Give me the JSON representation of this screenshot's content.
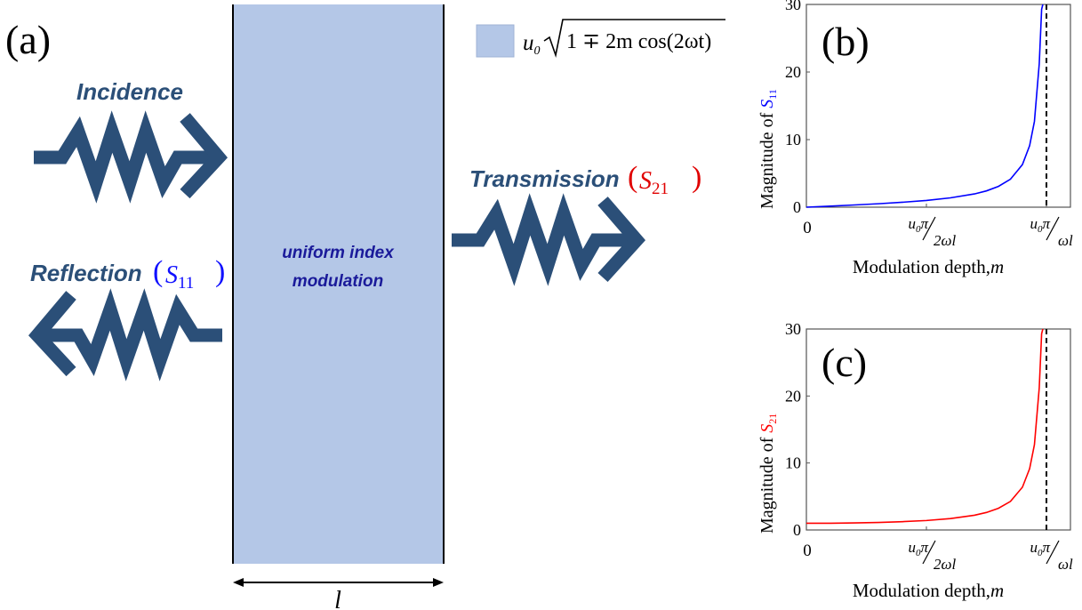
{
  "panels": {
    "a": {
      "label": "(a)",
      "incidence": "Incidence",
      "transmission": "Transmission",
      "transmission_symbol": "S",
      "transmission_sub": "21",
      "reflection": "Reflection",
      "reflection_symbol": "S",
      "reflection_sub": "11",
      "slab_line1": "uniform index",
      "slab_line2": "modulation",
      "width_label": "l",
      "legend": {
        "u": "u",
        "u_sub": "0",
        "radicand": "1 ∓ 2m cos(2ωt)"
      }
    },
    "b": {
      "label": "(b)"
    },
    "c": {
      "label": "(c)"
    }
  },
  "colors": {
    "arrow": "#2b4f78",
    "slab": "#b4c7e7",
    "text_blue": "#2b4f78",
    "slab_text": "#1a1a9a",
    "s11": "#0000ff",
    "s21": "#ff0000",
    "axis": "#555555"
  },
  "chart_data": [
    {
      "type": "line",
      "ylabel_prefix": "Magnitude of ",
      "ylabel_symbol": "S",
      "ylabel_sub": "11",
      "xlabel": "Modulation depth,",
      "xlabel_var": "m",
      "ylim": [
        0,
        30
      ],
      "yticks": [
        "0",
        "10",
        "20",
        "30"
      ],
      "xticks": [
        "0",
        "u₀π/2ωl",
        "u₀π/ωl"
      ],
      "xlim": [
        0,
        1.1
      ],
      "asymptote_x": 1,
      "series": [
        {
          "color": "#0000ff",
          "x": [
            0,
            0.1,
            0.2,
            0.3,
            0.4,
            0.5,
            0.6,
            0.7,
            0.75,
            0.8,
            0.85,
            0.9,
            0.93,
            0.95,
            0.97,
            0.98,
            0.985
          ],
          "y": [
            0.0,
            0.16,
            0.33,
            0.51,
            0.73,
            1.0,
            1.38,
            1.96,
            2.41,
            3.08,
            4.14,
            6.31,
            9.1,
            12.7,
            21.2,
            29.3,
            30.0
          ]
        }
      ]
    },
    {
      "type": "line",
      "ylabel_prefix": "Magnitude of ",
      "ylabel_symbol": "S",
      "ylabel_sub": "21",
      "xlabel": "Modulation depth,",
      "xlabel_var": "m",
      "ylim": [
        0,
        30
      ],
      "yticks": [
        "0",
        "10",
        "20",
        "30"
      ],
      "xticks": [
        "0",
        "u₀π/2ωl",
        "u₀π/ωl"
      ],
      "xlim": [
        0,
        1.1
      ],
      "asymptote_x": 1,
      "series": [
        {
          "color": "#ff0000",
          "x": [
            0,
            0.1,
            0.2,
            0.3,
            0.4,
            0.5,
            0.6,
            0.7,
            0.75,
            0.8,
            0.85,
            0.9,
            0.93,
            0.95,
            0.97,
            0.98,
            0.985
          ],
          "y": [
            1.0,
            1.01,
            1.05,
            1.12,
            1.24,
            1.41,
            1.7,
            2.2,
            2.61,
            3.24,
            4.26,
            6.39,
            9.15,
            12.74,
            21.2,
            29.3,
            30.0
          ]
        }
      ]
    }
  ]
}
